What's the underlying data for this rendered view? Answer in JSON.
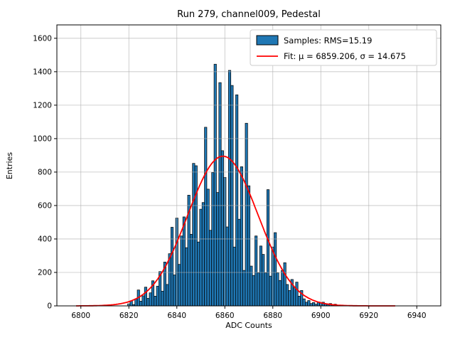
{
  "chart_data": {
    "type": "bar",
    "title": "Run 279, channel009, Pedestal",
    "xlabel": "ADC Counts",
    "ylabel": "Entries",
    "xlim": [
      6790,
      6950
    ],
    "ylim": [
      0,
      1680
    ],
    "x_ticks": [
      6800,
      6820,
      6840,
      6860,
      6880,
      6900,
      6920,
      6940
    ],
    "y_ticks": [
      0,
      200,
      400,
      600,
      800,
      1000,
      1200,
      1400,
      1600
    ],
    "grid": true,
    "bar_color": "#1f77b4",
    "bar_edge_color": "#000000",
    "bin_width": 1,
    "bin_centers": [
      6820,
      6821,
      6822,
      6823,
      6824,
      6825,
      6826,
      6827,
      6828,
      6829,
      6830,
      6831,
      6832,
      6833,
      6834,
      6835,
      6836,
      6837,
      6838,
      6839,
      6840,
      6841,
      6842,
      6843,
      6844,
      6845,
      6846,
      6847,
      6848,
      6849,
      6850,
      6851,
      6852,
      6853,
      6854,
      6855,
      6856,
      6857,
      6858,
      6859,
      6860,
      6861,
      6862,
      6863,
      6864,
      6865,
      6866,
      6867,
      6868,
      6869,
      6870,
      6871,
      6872,
      6873,
      6874,
      6875,
      6876,
      6877,
      6878,
      6879,
      6880,
      6881,
      6882,
      6883,
      6884,
      6885,
      6886,
      6887,
      6888,
      6889,
      6890,
      6891,
      6892,
      6893,
      6894,
      6895,
      6896,
      6897,
      6898,
      6899,
      6900,
      6901,
      6902,
      6903,
      6904,
      6905,
      6906
    ],
    "values": [
      12,
      30,
      8,
      42,
      95,
      28,
      60,
      112,
      45,
      78,
      150,
      58,
      118,
      205,
      88,
      262,
      128,
      312,
      470,
      185,
      525,
      248,
      418,
      532,
      348,
      662,
      428,
      852,
      838,
      382,
      578,
      618,
      1068,
      698,
      452,
      798,
      1445,
      678,
      1335,
      928,
      768,
      472,
      1408,
      1318,
      352,
      1262,
      518,
      832,
      212,
      1092,
      718,
      238,
      182,
      418,
      198,
      358,
      308,
      198,
      695,
      178,
      352,
      438,
      198,
      152,
      212,
      258,
      128,
      92,
      158,
      108,
      142,
      58,
      92,
      42,
      22,
      32,
      14,
      20,
      10,
      24,
      18,
      22,
      12,
      8,
      14,
      5,
      10
    ],
    "fit": {
      "type": "gaussian",
      "mu": 6859.206,
      "sigma": 14.675,
      "amplitude": 895,
      "x_start": 6798,
      "x_end": 6931,
      "color": "#ff0000"
    },
    "legend": {
      "position": "upper right",
      "entries": [
        {
          "label": "Samples: RMS=15.19",
          "swatch": "bar"
        },
        {
          "label": "Fit: μ = 6859.206, σ = 14.675",
          "swatch": "line"
        }
      ]
    }
  }
}
